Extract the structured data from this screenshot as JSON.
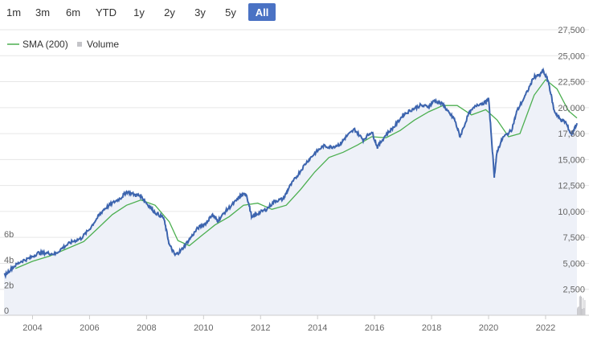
{
  "range_selector": {
    "buttons": [
      "1m",
      "3m",
      "6m",
      "YTD",
      "1y",
      "2y",
      "3y",
      "5y",
      "All"
    ],
    "active": "All"
  },
  "colors": {
    "price_line": "#3c64ae",
    "sma_line": "#4caf50",
    "volume_bar": "#c4c4c8",
    "area_fill": "#eef1f8",
    "active_button": "#4a72c4"
  },
  "chart_data": {
    "type": "line",
    "title": "",
    "legend": {
      "placement": "top-left",
      "items": [
        {
          "name": "SMA (200)",
          "marker": "line",
          "color": "#4caf50"
        },
        {
          "name": "Volume",
          "marker": "square",
          "color": "#c4c4c8"
        }
      ]
    },
    "x_ticks": [
      "2004",
      "2006",
      "2008",
      "2010",
      "2012",
      "2014",
      "2016",
      "2018",
      "2020",
      "2022"
    ],
    "x_range": [
      2003.0,
      2023.1
    ],
    "y_axis": {
      "position": "right",
      "range": [
        0,
        27500
      ],
      "ticks": [
        "2,500",
        "5,000",
        "7,500",
        "10,000",
        "12,500",
        "15,000",
        "17,500",
        "20,000",
        "22,500",
        "25,000",
        "27,500"
      ]
    },
    "volume_axis": {
      "position": "left",
      "ticks": [
        "0",
        "2b",
        "4b",
        "6b"
      ],
      "range": [
        0,
        10
      ]
    },
    "grid": true,
    "series": [
      {
        "name": "",
        "x": [
          2003.0,
          2003.3,
          2003.6,
          2003.9,
          2004.2,
          2004.5,
          2004.8,
          2005.1,
          2005.4,
          2005.7,
          2006.0,
          2006.3,
          2006.5,
          2006.8,
          2007.1,
          2007.3,
          2007.6,
          2007.8,
          2008.0,
          2008.3,
          2008.6,
          2008.8,
          2009.0,
          2009.2,
          2009.5,
          2009.8,
          2010.1,
          2010.3,
          2010.5,
          2010.8,
          2011.1,
          2011.3,
          2011.5,
          2011.7,
          2011.9,
          2012.2,
          2012.5,
          2012.8,
          2013.0,
          2013.3,
          2013.6,
          2013.9,
          2014.2,
          2014.5,
          2014.8,
          2015.0,
          2015.3,
          2015.6,
          2015.9,
          2016.1,
          2016.4,
          2016.7,
          2017.0,
          2017.3,
          2017.6,
          2017.9,
          2018.1,
          2018.4,
          2018.6,
          2018.8,
          2019.0,
          2019.3,
          2019.6,
          2019.9,
          2020.0,
          2020.2,
          2020.3,
          2020.5,
          2020.8,
          2021.0,
          2021.3,
          2021.6,
          2021.8,
          2021.9,
          2022.1,
          2022.3,
          2022.5,
          2022.7,
          2022.9,
          2023.1
        ],
        "values": [
          3800,
          4600,
          5200,
          5500,
          6000,
          6000,
          5900,
          6600,
          7100,
          7400,
          8300,
          9500,
          10200,
          10800,
          11300,
          11900,
          11600,
          11500,
          10800,
          9900,
          9400,
          6800,
          5800,
          6200,
          7300,
          8400,
          8900,
          9700,
          9100,
          10100,
          10900,
          11500,
          11700,
          9400,
          9800,
          10200,
          11000,
          11200,
          12300,
          13500,
          14700,
          15600,
          16300,
          16200,
          16500,
          17200,
          17900,
          16900,
          17700,
          16200,
          17400,
          18200,
          19300,
          19800,
          20200,
          20100,
          20700,
          20300,
          19500,
          18900,
          17200,
          19400,
          20300,
          20500,
          20900,
          13400,
          15800,
          17100,
          17800,
          19700,
          21200,
          23000,
          23100,
          23600,
          22500,
          19700,
          18900,
          18600,
          17400,
          18500
        ]
      },
      {
        "name": "SMA (200)",
        "x": [
          2003.4,
          2004.0,
          2004.6,
          2005.2,
          2005.8,
          2006.3,
          2006.8,
          2007.3,
          2007.8,
          2008.3,
          2008.8,
          2009.1,
          2009.5,
          2009.9,
          2010.4,
          2010.9,
          2011.4,
          2011.9,
          2012.4,
          2012.9,
          2013.4,
          2013.9,
          2014.4,
          2014.9,
          2015.4,
          2015.9,
          2016.4,
          2016.9,
          2017.4,
          2017.9,
          2018.4,
          2018.9,
          2019.4,
          2019.9,
          2020.3,
          2020.7,
          2021.1,
          2021.6,
          2022.0,
          2022.4,
          2022.8,
          2023.1
        ],
        "values": [
          4500,
          5200,
          5700,
          6400,
          7100,
          8400,
          9700,
          10600,
          11100,
          10600,
          9000,
          7200,
          6700,
          7600,
          8700,
          9500,
          10600,
          10800,
          10200,
          10600,
          12100,
          13800,
          15200,
          15700,
          16400,
          17200,
          17100,
          17800,
          18800,
          19600,
          20200,
          20200,
          19300,
          19800,
          18800,
          17200,
          17500,
          21200,
          22700,
          21800,
          19700,
          19000
        ]
      }
    ]
  }
}
